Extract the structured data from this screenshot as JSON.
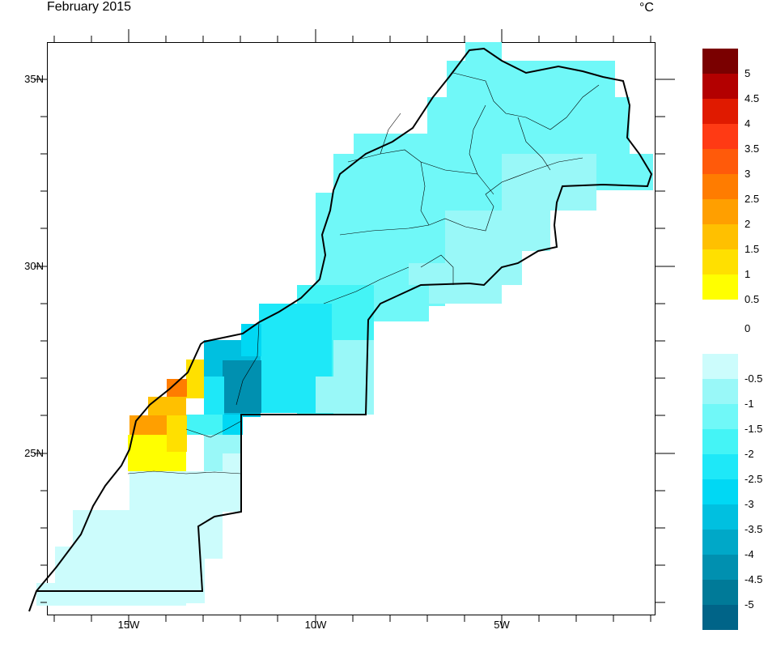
{
  "title": "February 2015",
  "units": "°C",
  "lon_ticks": [
    {
      "label": "15W"
    },
    {
      "label": "10W"
    },
    {
      "label": "5W"
    }
  ],
  "lat_ticks": [
    {
      "label": "35N"
    },
    {
      "label": "30N"
    },
    {
      "label": "25N"
    }
  ],
  "legend": {
    "warm": [
      {
        "color": "#7a0000",
        "label": "5"
      },
      {
        "color": "#b30000",
        "label": "4.5"
      },
      {
        "color": "#e01a00",
        "label": "4"
      },
      {
        "color": "#ff3a14",
        "label": "3.5"
      },
      {
        "color": "#ff5a0a",
        "label": "3"
      },
      {
        "color": "#ff7c00",
        "label": "2.5"
      },
      {
        "color": "#ff9f00",
        "label": "2"
      },
      {
        "color": "#ffc000",
        "label": "1.5"
      },
      {
        "color": "#ffe000",
        "label": "1"
      },
      {
        "color": "#ffff00",
        "label": "0.5"
      }
    ],
    "zero_label": "0",
    "cool": [
      {
        "color": "#ccfcfc",
        "label": "-0.5"
      },
      {
        "color": "#99f8f8",
        "label": "-1"
      },
      {
        "color": "#70f8f8",
        "label": "-1.5"
      },
      {
        "color": "#44f4f6",
        "label": "-2"
      },
      {
        "color": "#1ee8f8",
        "label": "-2.5"
      },
      {
        "color": "#00d8f4",
        "label": "-3"
      },
      {
        "color": "#00c0e0",
        "label": "-3.5"
      },
      {
        "color": "#00a8c8",
        "label": "-4"
      },
      {
        "color": "#0090b0",
        "label": "-4.5"
      },
      {
        "color": "#007a98",
        "label": "-5"
      },
      {
        "color": "#006488",
        "label": ""
      }
    ]
  }
}
